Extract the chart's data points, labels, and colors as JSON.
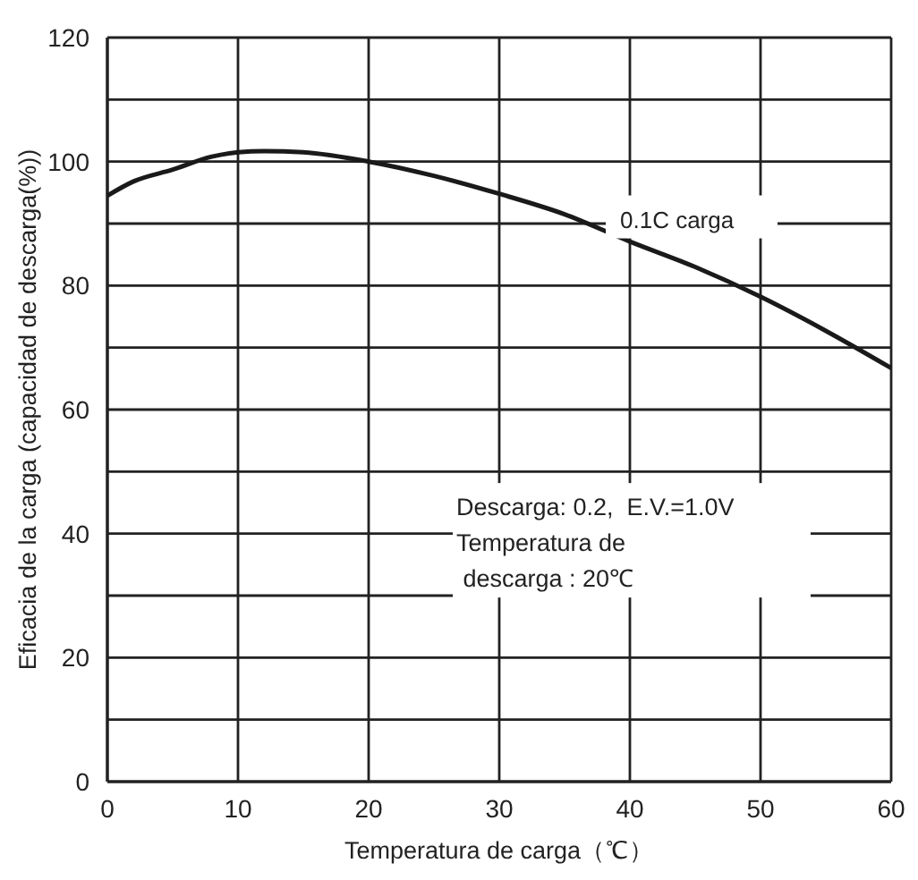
{
  "chart_data": {
    "type": "line",
    "xlabel": "Temperatura de carga（℃）",
    "ylabel": "Eficacia de la carga (capacidad de descarga(%))",
    "x": [
      0,
      2,
      5,
      8,
      10,
      12,
      15,
      20,
      25,
      30,
      35,
      40,
      45,
      50,
      55,
      60
    ],
    "series": [
      {
        "name": "0.1C carga",
        "color": "#1a1a1a",
        "values": [
          94.5,
          96.8,
          98.7,
          100.8,
          101.5,
          101.7,
          101.5,
          100,
          97.7,
          94.8,
          91.5,
          87.1,
          83,
          78.2,
          72.7,
          66.7
        ]
      }
    ],
    "xlim": [
      0,
      60
    ],
    "xticks": [
      0,
      10,
      20,
      30,
      40,
      50,
      60
    ],
    "ylim": [
      0,
      120
    ],
    "yticks": [
      0,
      {
        "value": 10,
        "label": null
      },
      20,
      {
        "value": 30,
        "label": null
      },
      40,
      {
        "value": 50,
        "label": null
      },
      60,
      {
        "value": 70,
        "label": null
      },
      80,
      {
        "value": 90,
        "label": null
      },
      100,
      {
        "value": 110,
        "label": null
      },
      120
    ],
    "grid": true,
    "line_style": "solid",
    "marker": "none",
    "annotations": [
      "Descarga: 0.2,  E.V.=1.0V",
      "Temperatura de",
      " descarga : 20℃"
    ]
  }
}
